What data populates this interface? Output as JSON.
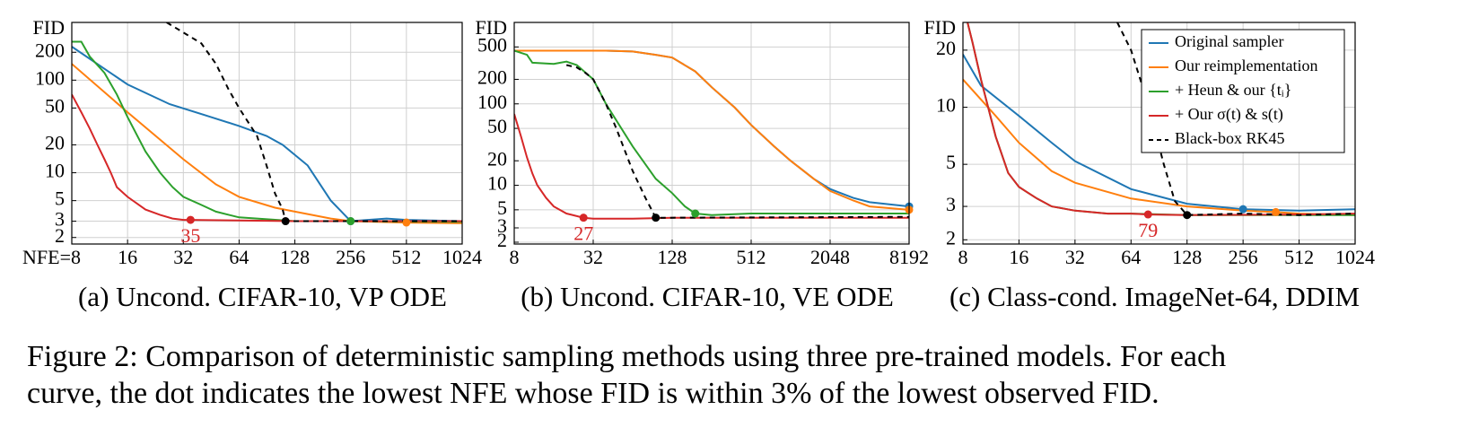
{
  "chart_data": [
    {
      "type": "line",
      "title": "(a) Uncond. CIFAR-10, VP ODE",
      "ylabel": "FID",
      "xscale": "log",
      "yscale": "log",
      "grid": true,
      "xlim": [
        8,
        1024
      ],
      "xticks": [
        {
          "value": 8,
          "label": "NFE=8"
        },
        16,
        32,
        64,
        128,
        256,
        512,
        1024
      ],
      "ylim": [
        1.7,
        420
      ],
      "yticks": [
        2,
        3,
        5,
        10,
        20,
        50,
        100,
        200
      ],
      "series": [
        {
          "name": "Original sampler",
          "color": "#1f77b4",
          "x": [
            8,
            16,
            27,
            45,
            64,
            90,
            110,
            150,
            200,
            256,
            400,
            512,
            1024
          ],
          "values": [
            230,
            90,
            55,
            40,
            32,
            25,
            20,
            12,
            5,
            3,
            3.2,
            3.1,
            3.0
          ],
          "dot": {
            "x": 256,
            "y": 3.0
          }
        },
        {
          "name": "Our reimplementation",
          "color": "#ff7f0e",
          "x": [
            8,
            16,
            32,
            48,
            64,
            100,
            128,
            200,
            256,
            512,
            1024
          ],
          "values": [
            150,
            45,
            14,
            7.5,
            5.5,
            4.2,
            3.8,
            3.2,
            3.0,
            2.9,
            2.85
          ],
          "dot": {
            "x": 512,
            "y": 2.9
          }
        },
        {
          "name": "+ Heun & our {tᵢ}",
          "color": "#2ca02c",
          "x": [
            8,
            9,
            10,
            12,
            14,
            16,
            20,
            24,
            28,
            32,
            40,
            48,
            64,
            128,
            256,
            1024
          ],
          "values": [
            260,
            260,
            180,
            120,
            70,
            40,
            17,
            10,
            7,
            5.5,
            4.5,
            3.8,
            3.3,
            3.0,
            3.0,
            2.95
          ],
          "dot": {
            "x": 256,
            "y": 3.0
          }
        },
        {
          "name": "+ Our σ(t) & s(t)",
          "color": "#d62728",
          "x": [
            8,
            9,
            10,
            11,
            12,
            13,
            14,
            16,
            20,
            24,
            28,
            32,
            35,
            64,
            128,
            1024
          ],
          "values": [
            70,
            45,
            30,
            20,
            14,
            10,
            7,
            5.5,
            4,
            3.5,
            3.2,
            3.1,
            3.1,
            3.05,
            3.0,
            3.0
          ],
          "dot": {
            "x": 35,
            "y": 3.1
          }
        },
        {
          "name": "Black-box RK45",
          "color": "#000000",
          "dash": true,
          "x": [
            26,
            40,
            48,
            56,
            64,
            80,
            90,
            100,
            110,
            114,
            128,
            256,
            1024
          ],
          "values": [
            420,
            250,
            150,
            80,
            50,
            25,
            12,
            6,
            4,
            3.0,
            3.0,
            3.0,
            3.0
          ],
          "dot": {
            "x": 114,
            "y": 3.0
          }
        }
      ]
    },
    {
      "type": "line",
      "title": "(b) Uncond. CIFAR-10, VE ODE",
      "ylabel": "FID",
      "xscale": "log",
      "yscale": "log",
      "grid": true,
      "xlim": [
        8,
        8192
      ],
      "xticks": [
        8,
        32,
        128,
        512,
        2048,
        8192
      ],
      "ylim": [
        1.9,
        1000
      ],
      "yticks": [
        2,
        3,
        5,
        10,
        20,
        50,
        100,
        200,
        500
      ],
      "series": [
        {
          "name": "Original sampler",
          "color": "#1f77b4",
          "x": [
            8,
            40,
            64,
            96,
            128,
            192,
            256,
            384,
            512,
            768,
            1024,
            1536,
            2048,
            3072,
            4096,
            8192
          ],
          "values": [
            450,
            450,
            440,
            400,
            370,
            250,
            160,
            90,
            55,
            30,
            20,
            12,
            9,
            7,
            6.2,
            5.5
          ],
          "dot": {
            "x": 8192,
            "y": 5.5
          }
        },
        {
          "name": "Our reimplementation",
          "color": "#ff7f0e",
          "x": [
            8,
            40,
            64,
            96,
            128,
            192,
            256,
            384,
            512,
            768,
            1024,
            1536,
            2048,
            3072,
            4096,
            8192
          ],
          "values": [
            450,
            450,
            440,
            400,
            370,
            250,
            160,
            90,
            55,
            30,
            20,
            12,
            8.5,
            6.5,
            5.5,
            5.0
          ],
          "dot": {
            "x": 8192,
            "y": 5.0
          }
        },
        {
          "name": "+ Heun & our {tᵢ}",
          "color": "#2ca02c",
          "x": [
            8,
            10,
            11,
            16,
            20,
            24,
            32,
            40,
            64,
            96,
            128,
            160,
            192,
            256,
            512,
            8192
          ],
          "values": [
            450,
            400,
            320,
            310,
            330,
            300,
            200,
            100,
            30,
            12,
            8,
            5.5,
            4.5,
            4.3,
            4.5,
            4.5
          ],
          "dot": {
            "x": 192,
            "y": 4.5
          }
        },
        {
          "name": "+ Our σ(t) & s(t)",
          "color": "#d62728",
          "x": [
            8,
            9,
            10,
            11,
            12,
            14,
            16,
            20,
            27,
            32,
            64,
            128,
            8192
          ],
          "values": [
            75,
            40,
            22,
            14,
            10,
            7,
            5.5,
            4.5,
            4.0,
            3.9,
            3.9,
            4.0,
            4.0
          ],
          "dot": {
            "x": 27,
            "y": 4.0
          }
        },
        {
          "name": "Black-box RK45",
          "color": "#000000",
          "dash": true,
          "x": [
            20,
            24,
            28,
            32,
            40,
            48,
            64,
            80,
            96,
            128,
            8192
          ],
          "values": [
            300,
            280,
            240,
            200,
            100,
            50,
            15,
            7,
            4.0,
            4.0,
            4.1
          ],
          "dot": {
            "x": 96,
            "y": 4.0
          }
        }
      ]
    },
    {
      "type": "line",
      "title": "(c) Class-cond. ImageNet-64, DDIM",
      "ylabel": "FID",
      "xscale": "log",
      "yscale": "log",
      "grid": true,
      "legend": "top-right",
      "xlim": [
        8,
        1024
      ],
      "xticks": [
        8,
        16,
        32,
        64,
        128,
        256,
        512,
        1024
      ],
      "ylim": [
        1.9,
        28
      ],
      "yticks": [
        2,
        3,
        5,
        10,
        20
      ],
      "series": [
        {
          "name": "Original sampler",
          "color": "#1f77b4",
          "x": [
            8,
            10,
            16,
            24,
            32,
            64,
            128,
            256,
            512,
            1024
          ],
          "values": [
            19,
            13,
            9,
            6.5,
            5.2,
            3.7,
            3.1,
            2.9,
            2.85,
            2.9
          ],
          "dot": {
            "x": 256,
            "y": 2.9
          }
        },
        {
          "name": "Our reimplementation",
          "color": "#ff7f0e",
          "x": [
            8,
            12,
            16,
            24,
            32,
            64,
            128,
            256,
            384,
            512,
            1024
          ],
          "values": [
            14,
            9,
            6.5,
            4.6,
            4.0,
            3.3,
            3.0,
            2.85,
            2.8,
            2.75,
            2.7
          ],
          "dot": {
            "x": 384,
            "y": 2.8
          }
        },
        {
          "name": "+ Heun & our {tᵢ}",
          "color": "#2ca02c",
          "x": [
            8,
            9,
            10,
            12,
            14,
            16,
            20,
            24,
            32,
            48,
            64,
            128,
            512,
            1024
          ],
          "values": [
            35,
            22,
            14,
            7,
            4.5,
            3.8,
            3.3,
            3.0,
            2.85,
            2.75,
            2.75,
            2.7,
            2.7,
            2.7
          ]
        },
        {
          "name": "+ Our σ(t) & s(t)",
          "color": "#d62728",
          "x": [
            8,
            9,
            10,
            12,
            14,
            16,
            20,
            24,
            32,
            48,
            64,
            79,
            128,
            512,
            1024
          ],
          "values": [
            35,
            22,
            14,
            7,
            4.5,
            3.8,
            3.3,
            3.0,
            2.85,
            2.75,
            2.75,
            2.72,
            2.7,
            2.72,
            2.75
          ],
          "dot": {
            "x": 79,
            "y": 2.72
          }
        },
        {
          "name": "Black-box RK45",
          "color": "#000000",
          "dash": true,
          "x": [
            54,
            64,
            80,
            96,
            110,
            128,
            256,
            512,
            1024
          ],
          "values": [
            28,
            20,
            10,
            5,
            3.2,
            2.7,
            2.75,
            2.7,
            2.75
          ],
          "dot": {
            "x": 128,
            "y": 2.7
          }
        }
      ]
    }
  ],
  "caption": [
    "Figure 2: Comparison of deterministic sampling methods using three pre-trained models. For each",
    "curve, the dot indicates the lowest NFE whose FID is within 3% of the lowest observed FID."
  ]
}
